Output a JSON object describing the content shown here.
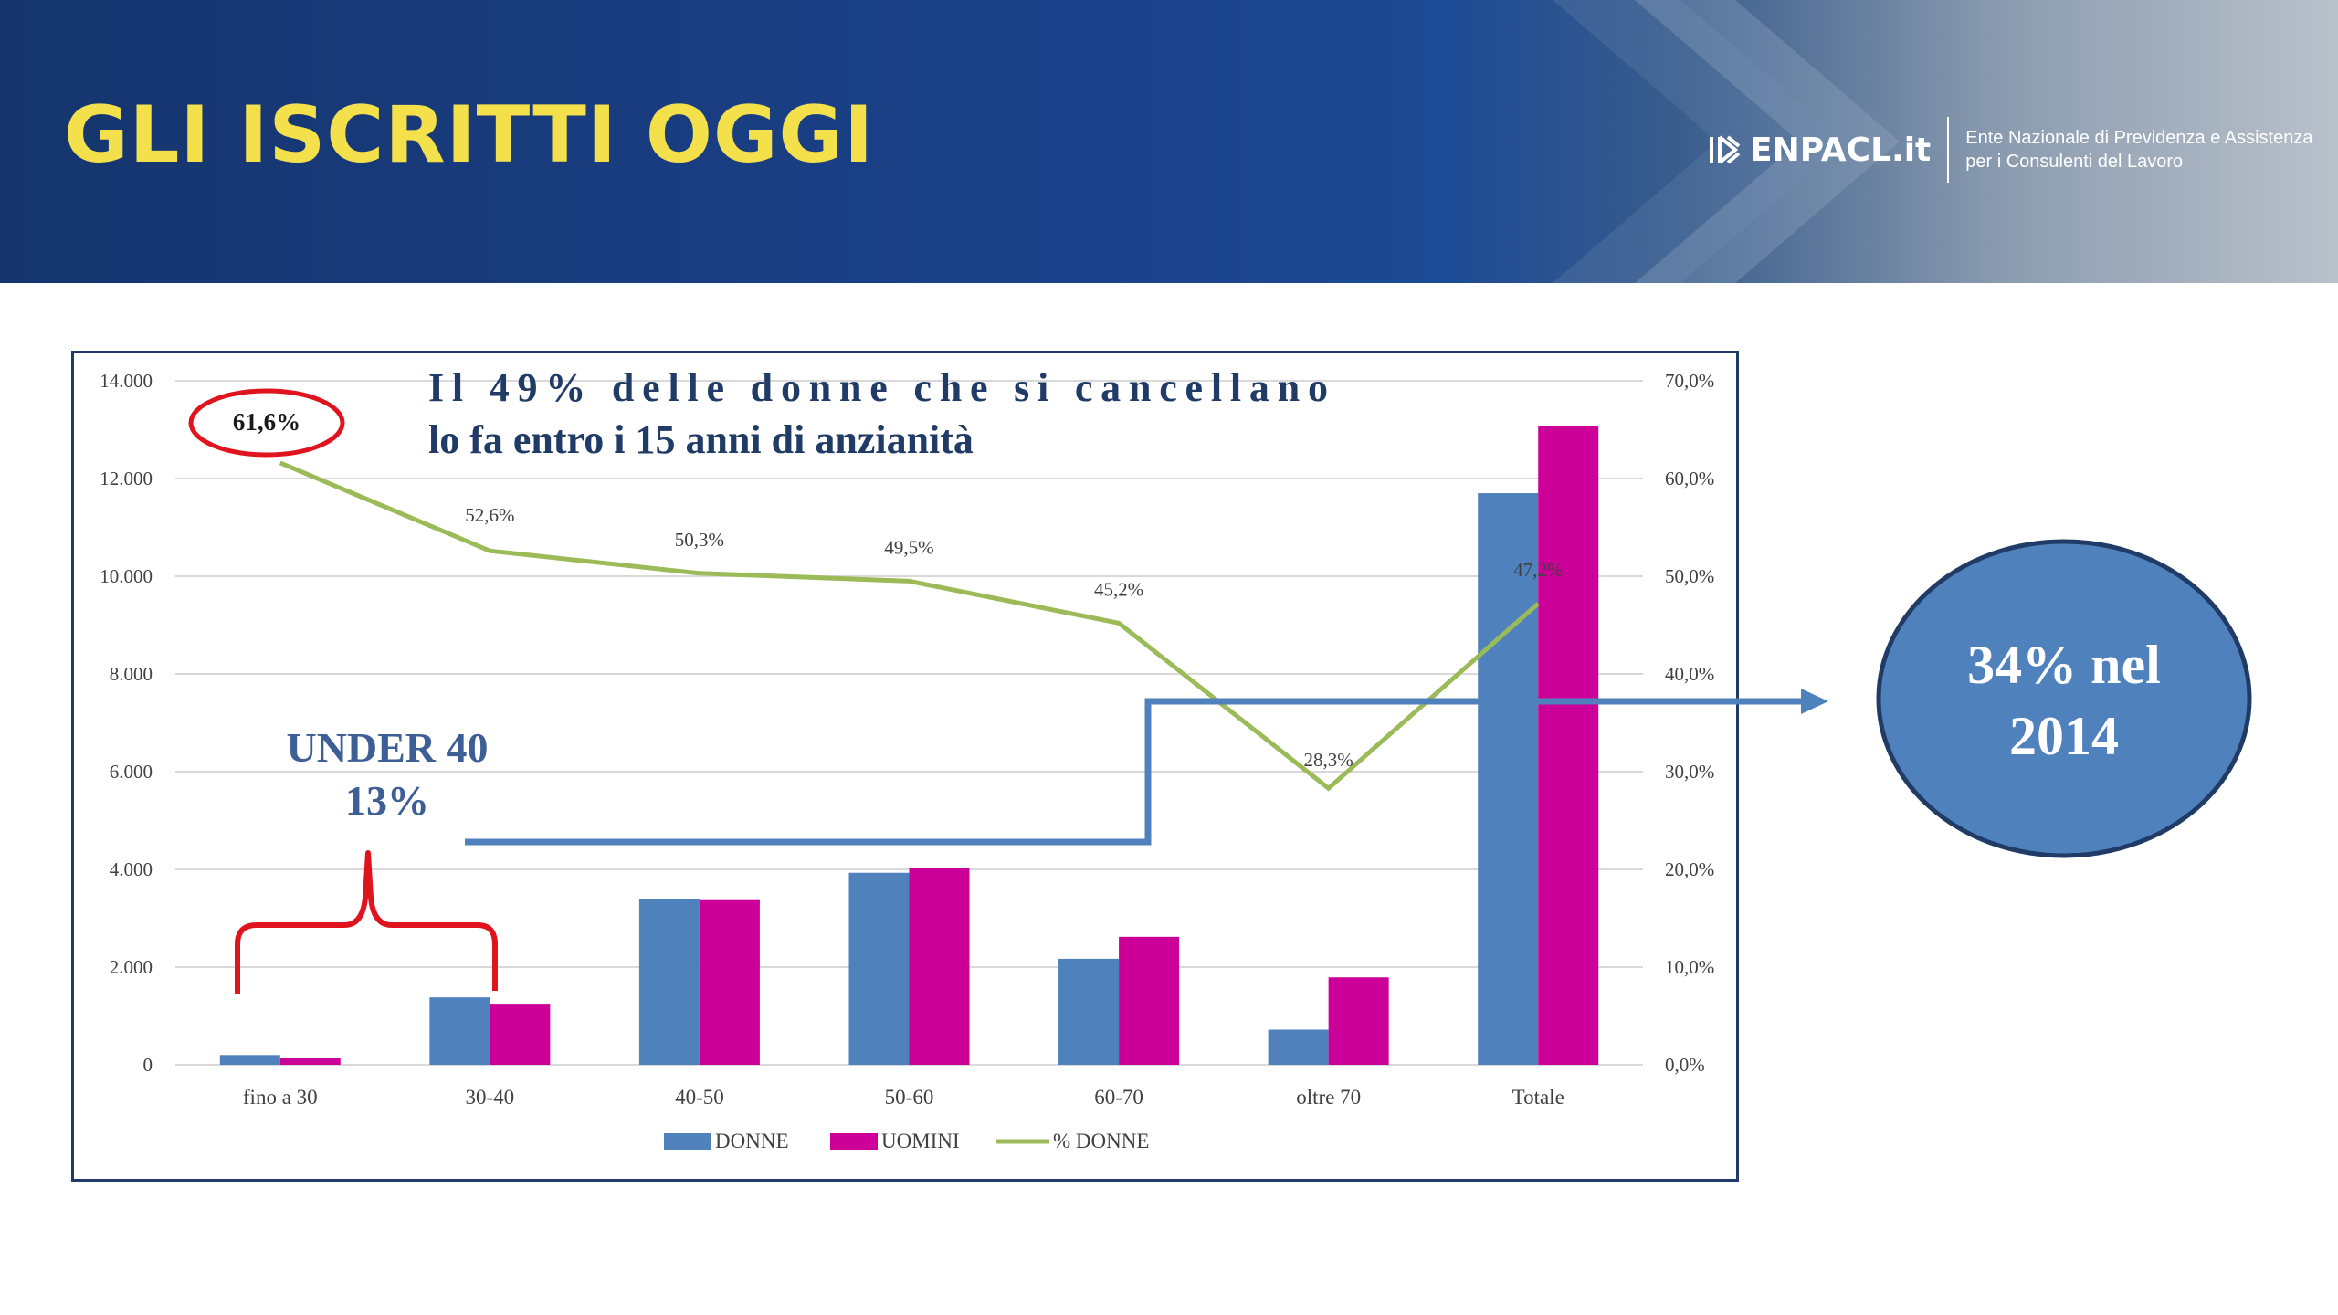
{
  "slide": {
    "title": "GLI ISCRITTI OGGI",
    "logo_text": "ENPACL.it",
    "logo_desc_line1": "Ente Nazionale di Previdenza e Assistenza",
    "logo_desc_line2": "per i Consulenti del Lavoro"
  },
  "annotations": {
    "headline_line1": "Il 49% delle donne che si cancellano",
    "headline_line2": "lo fa entro i 15 anni di anzianità",
    "under40_line1": "UNDER 40",
    "under40_line2": "13%",
    "circled_label": "61,6%",
    "callout_line1": "34% nel",
    "callout_line2": "2014"
  },
  "colors": {
    "donne": "#4f81bd",
    "uomini": "#cc0099",
    "pct_line": "#9bbb59",
    "annotation_red": "#e0141e",
    "callout_fill": "#4f81bd",
    "callout_border": "#1f3b66",
    "title": "#f3e04b"
  },
  "chart_data": {
    "type": "bar",
    "categories": [
      "fino a 30",
      "30-40",
      "40-50",
      "50-60",
      "60-70",
      "oltre 70",
      "Totale"
    ],
    "series": [
      {
        "name": "DONNE",
        "type": "bar",
        "axis": "left",
        "values": [
          200,
          1380,
          3400,
          3930,
          2170,
          720,
          11700
        ]
      },
      {
        "name": "UOMINI",
        "type": "bar",
        "axis": "left",
        "values": [
          130,
          1250,
          3370,
          4030,
          2620,
          1790,
          13080
        ]
      },
      {
        "name": "% DONNE",
        "type": "line",
        "axis": "right",
        "values": [
          61.6,
          52.6,
          50.3,
          49.5,
          45.2,
          28.3,
          47.2
        ],
        "labels": [
          "61,6%",
          "52,6%",
          "50,3%",
          "49,5%",
          "45,2%",
          "28,3%",
          "47,2%"
        ]
      }
    ],
    "y_left": {
      "min": 0,
      "max": 14000,
      "ticks": [
        "0",
        "2.000",
        "4.000",
        "6.000",
        "8.000",
        "10.000",
        "12.000",
        "14.000"
      ]
    },
    "y_right": {
      "min": 0,
      "max": 70,
      "ticks": [
        "0,0%",
        "10,0%",
        "20,0%",
        "30,0%",
        "40,0%",
        "50,0%",
        "60,0%",
        "70,0%"
      ]
    },
    "legend": {
      "position": "bottom",
      "entries": [
        "DONNE",
        "UOMINI",
        "% DONNE"
      ]
    },
    "grid": true
  }
}
